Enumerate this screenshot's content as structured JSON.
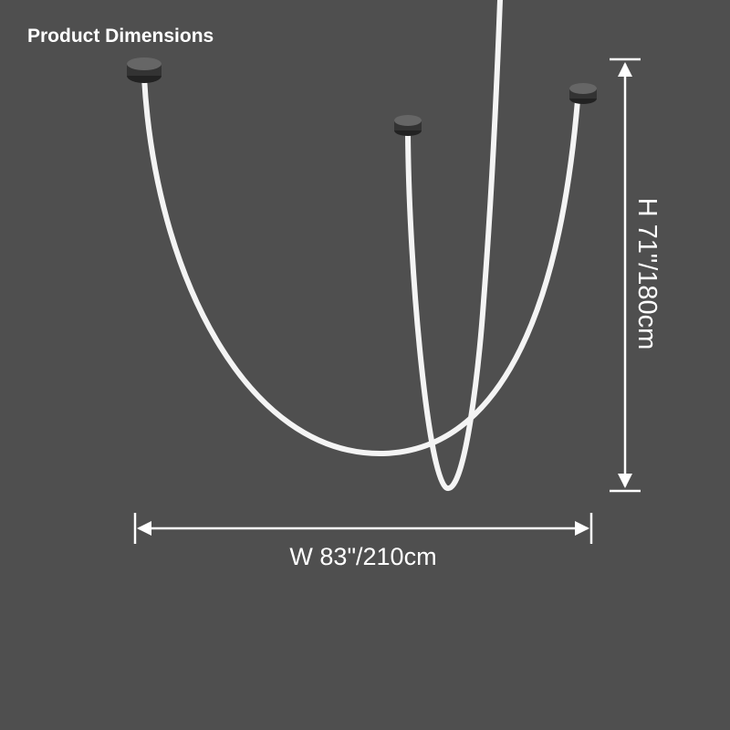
{
  "header": {
    "title": "Product Dimensions"
  },
  "dimensions": {
    "height": "H 71\"/180cm",
    "width": "W 83\"/210cm"
  }
}
